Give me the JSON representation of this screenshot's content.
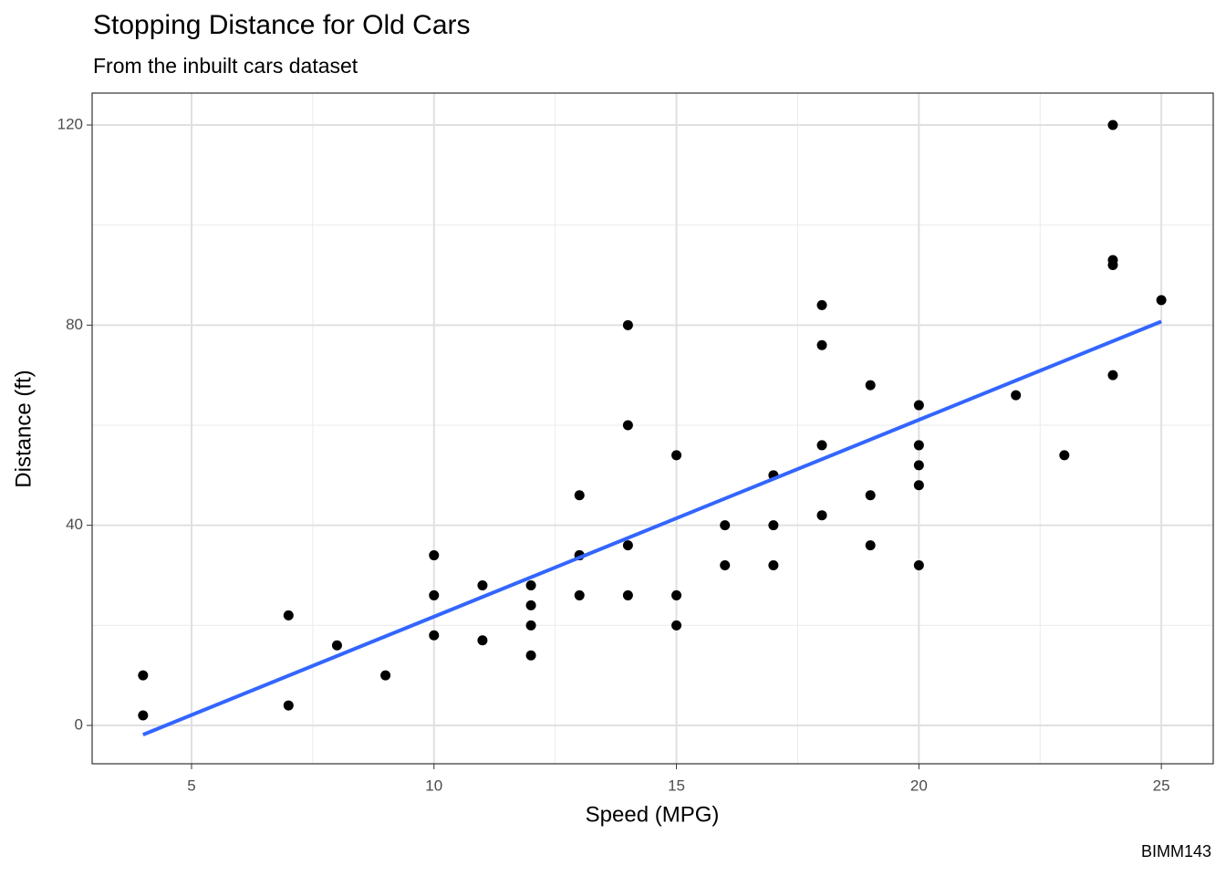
{
  "chart_data": {
    "type": "scatter",
    "title": "Stopping Distance for Old Cars",
    "subtitle": "From the inbuilt cars dataset",
    "x_label": "Speed (MPG)",
    "y_label": "Distance (ft)",
    "caption": "BIMM143",
    "x": [
      4,
      4,
      7,
      7,
      8,
      9,
      10,
      10,
      10,
      11,
      11,
      12,
      12,
      12,
      12,
      13,
      13,
      13,
      13,
      14,
      14,
      14,
      14,
      15,
      15,
      15,
      16,
      16,
      17,
      17,
      17,
      18,
      18,
      18,
      18,
      19,
      19,
      19,
      20,
      20,
      20,
      20,
      20,
      22,
      23,
      24,
      24,
      24,
      24,
      25
    ],
    "values": [
      2,
      10,
      4,
      22,
      16,
      10,
      18,
      26,
      34,
      17,
      28,
      14,
      20,
      24,
      28,
      26,
      34,
      34,
      46,
      26,
      36,
      60,
      80,
      20,
      26,
      54,
      32,
      40,
      32,
      40,
      50,
      42,
      56,
      76,
      84,
      36,
      46,
      68,
      32,
      48,
      52,
      56,
      64,
      66,
      54,
      70,
      92,
      93,
      120,
      85
    ],
    "color": "#000000",
    "trend_line": {
      "x": [
        4,
        25
      ],
      "values": [
        -1.85,
        80.73
      ],
      "color": "#3366ff"
    },
    "xlim": [
      2.95,
      26.07
    ],
    "xticks": [
      5,
      10,
      15,
      20,
      25
    ],
    "x_minor_ticks": [
      7.5,
      12.5,
      17.5,
      22.5
    ],
    "ylim": [
      -7.66,
      126.38
    ],
    "yticks": [
      0,
      40,
      80,
      120
    ],
    "y_minor_ticks": [
      20,
      60,
      100
    ],
    "grid": true
  }
}
